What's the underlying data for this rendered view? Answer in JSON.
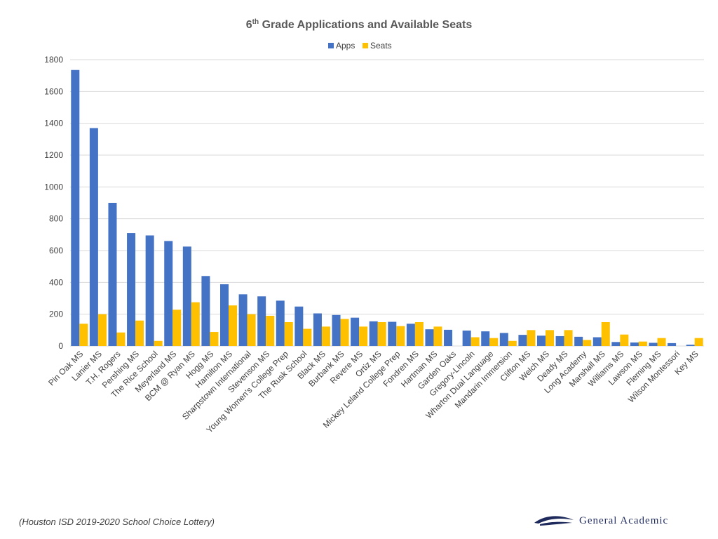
{
  "source_note": "(Houston ISD 2019-2020 School Choice Lottery)",
  "brand": {
    "name": "General Academic",
    "logo_icon": "swoosh-logo-icon"
  },
  "colors": {
    "apps": "#4472c4",
    "seats": "#ffc000",
    "grid": "#d9d9d9",
    "text": "#404040"
  },
  "chart_data": {
    "type": "bar",
    "title_main": "6",
    "title_sup": "th",
    "title_rest": " Grade Applications and Available Seats",
    "legend_position": "top",
    "grid": true,
    "ylim": [
      0,
      1800
    ],
    "yticks": [
      0,
      200,
      400,
      600,
      800,
      1000,
      1200,
      1400,
      1600,
      1800
    ],
    "categories": [
      "Pin Oak MS",
      "Lanier MS",
      "T.H. Rogers",
      "Pershing MS",
      "The Rice School",
      "Meyerland MS",
      "BCM @ Ryan MS",
      "Hogg MS",
      "Hamilton MS",
      "Sharpstown International",
      "Stevenson MS",
      "Young Women's College Prep",
      "The Rusk School",
      "Black MS",
      "Burbank MS",
      "Revere MS",
      "Ortiz MS",
      "Mickey Leland College Prep",
      "Fondren MS",
      "Hartman MS",
      "Garden Oaks",
      "Gregory-Lincoln",
      "Wharton Dual Language",
      "Mandarin Immersion",
      "Clifton MS",
      "Welch MS",
      "Deady MS",
      "Long Academy",
      "Marshall MS",
      "Williams MS",
      "Lawson MS",
      "Fleming MS",
      "Wilson Montessori",
      "Key MS"
    ],
    "series": [
      {
        "name": "Apps",
        "values": [
          1735,
          1370,
          900,
          710,
          695,
          660,
          625,
          440,
          388,
          325,
          312,
          285,
          248,
          205,
          195,
          178,
          155,
          152,
          140,
          105,
          102,
          97,
          92,
          82,
          70,
          65,
          62,
          58,
          55,
          25,
          22,
          20,
          18,
          8
        ]
      },
      {
        "name": "Seats",
        "values": [
          140,
          200,
          85,
          160,
          32,
          228,
          275,
          88,
          255,
          200,
          190,
          150,
          108,
          122,
          170,
          122,
          150,
          125,
          150,
          122,
          0,
          55,
          50,
          32,
          100,
          100,
          100,
          38,
          150,
          72,
          28,
          50,
          0,
          50
        ]
      }
    ]
  }
}
